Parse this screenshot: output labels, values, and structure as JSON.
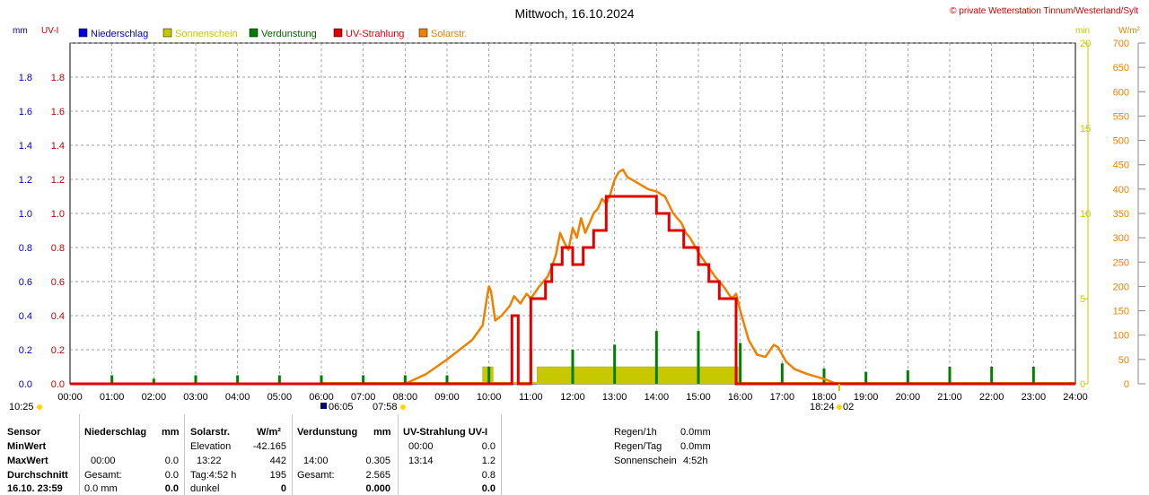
{
  "header": {
    "title": "Mittwoch, 16.10.2024",
    "copyright": "© private Wetterstation Tinnum/Westerland/Sylt"
  },
  "axis_units": {
    "left_mm": "mm",
    "left_uv": "UV-I",
    "right_min": "min",
    "right_wm2": "W/m²"
  },
  "legend": [
    {
      "label": "Niederschlag",
      "color": "#0000e0",
      "text_color": "#0000c0"
    },
    {
      "label": "Sonnenschein",
      "color": "#c8c800",
      "text_color": "#c8c800"
    },
    {
      "label": "Verdunstung",
      "color": "#008000",
      "text_color": "#006400"
    },
    {
      "label": "UV-Strahlung",
      "color": "#e00000",
      "text_color": "#e00000"
    },
    {
      "label": "Solarstr.",
      "color": "#f08000",
      "text_color": "#f08000"
    }
  ],
  "colors": {
    "grid": "#808080",
    "mm_axis": "#0000c0",
    "uv_axis": "#c00000",
    "min_axis": "#c8c800",
    "wm2_axis": "#f08000"
  },
  "chart_data": {
    "type": "line",
    "x_unit": "time of day (hours)",
    "x_ticks": [
      "00:00",
      "01:00",
      "02:00",
      "03:00",
      "04:00",
      "05:00",
      "06:00",
      "07:00",
      "08:00",
      "09:00",
      "10:00",
      "11:00",
      "12:00",
      "13:00",
      "14:00",
      "15:00",
      "16:00",
      "17:00",
      "18:00",
      "19:00",
      "20:00",
      "21:00",
      "22:00",
      "23:00",
      "24:00"
    ],
    "xlim": [
      0,
      24
    ],
    "left_axis_mm": {
      "label": "mm",
      "ylim": [
        0,
        2
      ],
      "ticks": [
        "0.0",
        "0.2",
        "0.4",
        "0.6",
        "0.8",
        "1.0",
        "1.2",
        "1.4",
        "1.6",
        "1.8"
      ]
    },
    "left_axis_uv": {
      "label": "UV-I",
      "ylim": [
        0,
        2
      ],
      "ticks": [
        "0.0",
        "0.2",
        "0.4",
        "0.6",
        "0.8",
        "1.0",
        "1.2",
        "1.4",
        "1.6",
        "1.8"
      ]
    },
    "right_axis_min": {
      "label": "min",
      "ylim": [
        0,
        20
      ],
      "ticks": [
        "0",
        "5",
        "10",
        "15",
        "20"
      ]
    },
    "right_axis_wm2": {
      "label": "W/m²",
      "ylim": [
        0,
        700
      ],
      "ticks": [
        "0",
        "50",
        "100",
        "150",
        "200",
        "250",
        "300",
        "350",
        "400",
        "450",
        "500",
        "550",
        "600",
        "650",
        "700"
      ]
    },
    "grid": true,
    "series": [
      {
        "name": "Niederschlag",
        "axis": "mm",
        "kind": "line",
        "x": [
          0,
          24
        ],
        "y": [
          0,
          0
        ]
      },
      {
        "name": "Solarstr.",
        "axis": "W/m²",
        "kind": "line",
        "x": [
          8.0,
          8.5,
          9.0,
          9.3,
          9.6,
          9.85,
          9.95,
          10.0,
          10.05,
          10.15,
          10.3,
          10.5,
          10.6,
          10.75,
          10.9,
          11.0,
          11.2,
          11.4,
          11.5,
          11.6,
          11.7,
          11.8,
          11.9,
          12.0,
          12.1,
          12.2,
          12.3,
          12.4,
          12.5,
          12.6,
          12.7,
          12.8,
          12.9,
          13.0,
          13.1,
          13.2,
          13.3,
          13.4,
          13.5,
          13.6,
          13.8,
          14.0,
          14.2,
          14.4,
          14.6,
          14.7,
          14.8,
          15.0,
          15.2,
          15.4,
          15.6,
          15.8,
          15.9,
          16.0,
          16.2,
          16.4,
          16.6,
          16.8,
          16.9,
          17.1,
          17.3,
          17.6,
          18.0,
          18.3
        ],
        "y": [
          0,
          20,
          50,
          70,
          90,
          120,
          175,
          200,
          190,
          130,
          140,
          160,
          180,
          165,
          185,
          175,
          200,
          220,
          240,
          265,
          310,
          290,
          275,
          320,
          300,
          340,
          310,
          330,
          350,
          360,
          380,
          370,
          390,
          420,
          435,
          440,
          425,
          420,
          415,
          410,
          400,
          395,
          385,
          350,
          330,
          310,
          300,
          270,
          245,
          220,
          200,
          175,
          185,
          150,
          90,
          60,
          55,
          80,
          75,
          45,
          30,
          20,
          10,
          0
        ]
      },
      {
        "name": "UV-Strahlung",
        "axis": "UV-I",
        "kind": "step",
        "x": [
          0,
          10.5,
          10.55,
          10.7,
          11.0,
          11.2,
          11.35,
          11.5,
          11.75,
          12.0,
          12.25,
          12.5,
          12.8,
          13.2,
          14.0,
          14.3,
          14.65,
          15.0,
          15.25,
          15.5,
          15.9,
          16.0,
          24.0
        ],
        "y": [
          0,
          0,
          0.4,
          0,
          0.5,
          0.5,
          0.6,
          0.7,
          0.8,
          0.7,
          0.8,
          0.9,
          1.1,
          1.1,
          1.0,
          0.9,
          0.8,
          0.7,
          0.6,
          0.5,
          0,
          0,
          0
        ]
      },
      {
        "name": "Sonnenschein",
        "axis": "min",
        "kind": "bar",
        "intervals": [
          {
            "from": 9.85,
            "to": 10.1,
            "value": 1
          },
          {
            "from": 11.15,
            "to": 15.95,
            "value": 1
          }
        ]
      },
      {
        "name": "Verdunstung",
        "axis": "mm",
        "kind": "spikes",
        "x": [
          1,
          2,
          3,
          4,
          5,
          6,
          7,
          8,
          9,
          10,
          11,
          12,
          13,
          14,
          15,
          16,
          17,
          18,
          19,
          20,
          21,
          22,
          23
        ],
        "y": [
          0.05,
          0.03,
          0.05,
          0.05,
          0.05,
          0.05,
          0.05,
          0.05,
          0.05,
          0.1,
          0.2,
          0.2,
          0.23,
          0.31,
          0.31,
          0.24,
          0.12,
          0.09,
          0.07,
          0.08,
          0.1,
          0.1,
          0.1
        ]
      }
    ],
    "sun_markers": {
      "rise_above_axis": "06:00",
      "sunrise": "06:05",
      "sunrise_label2": "07:58",
      "sunset": "18:24",
      "sunset_label2": "02",
      "day_length": "10:25"
    }
  },
  "table": {
    "rows_labels": [
      "Sensor",
      "MinWert",
      "MaxWert",
      "Durchschnitt",
      "16.10. 23:59"
    ],
    "niederschlag": {
      "header": "Niederschlag",
      "unit": "mm",
      "max_time": "00:00",
      "max_val": "0.0",
      "avg_label": "Gesamt:",
      "avg_val": "0.0",
      "last_val": "0.0 mm",
      "last_bold": "0.0"
    },
    "solar": {
      "header": "Solarstr.",
      "unit": "W/m²",
      "elev_label": "Elevation",
      "elev_val": "-42.165",
      "max_time": "13:22",
      "max_val": "442",
      "avg_label": "Tag:4:52 h",
      "avg_val": "195",
      "last_label": "dunkel",
      "last_val": "0"
    },
    "verdunstung": {
      "header": "Verdunstung",
      "unit": "mm",
      "max_time": "14:00",
      "max_val": "0.305",
      "avg_label": "Gesamt:",
      "avg_val": "2.565",
      "last_val": "0.000"
    },
    "uv": {
      "header": "UV-Strahlung UV-I",
      "min_time": "00:00",
      "min_val": "0.0",
      "max_time": "13:14",
      "max_val": "1.2",
      "avg_val": "0.8",
      "last_val": "0.0"
    },
    "summary": [
      {
        "label": "Regen/1h",
        "value": "0.0mm"
      },
      {
        "label": "Regen/Tag",
        "value": "0.0mm"
      },
      {
        "label": "Sonnenschein",
        "value": "4:52h"
      }
    ]
  }
}
